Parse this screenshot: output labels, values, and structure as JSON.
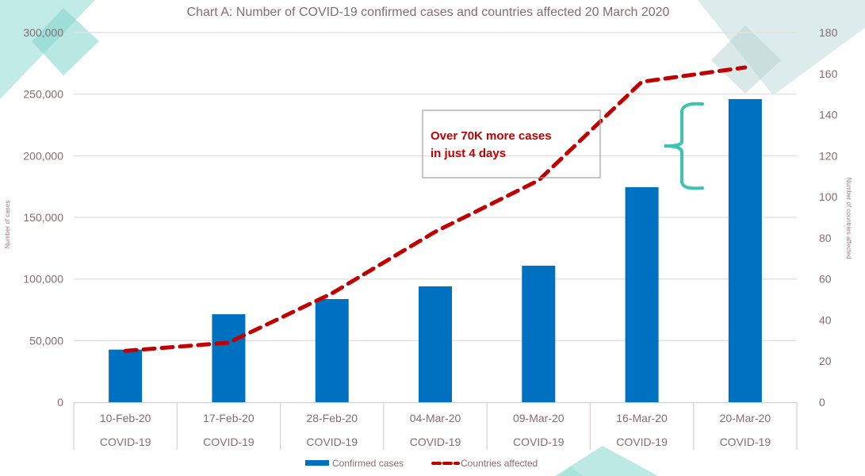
{
  "chart_data": {
    "type": "bar",
    "title": "Chart A: Number of COVID-19 confirmed cases and countries affected 20 March 2020",
    "categories": [
      "10-Feb-20",
      "17-Feb-20",
      "28-Feb-20",
      "04-Mar-20",
      "09-Mar-20",
      "16-Mar-20",
      "20-Mar-20"
    ],
    "category_group_labels": [
      "COVID-19",
      "COVID-19",
      "COVID-19",
      "COVID-19",
      "COVID-19",
      "COVID-19",
      "COVID-19"
    ],
    "series": [
      {
        "name": "Confirmed cases",
        "type": "bar",
        "axis": "left",
        "color": "#0070c0",
        "values": [
          42700,
          71400,
          83700,
          94000,
          110800,
          174500,
          246000
        ]
      },
      {
        "name": "Countries affected",
        "type": "line",
        "axis": "right",
        "style": "dashed",
        "color": "#c00000",
        "values": [
          25,
          29,
          53,
          83,
          108,
          156,
          163
        ]
      }
    ],
    "ylabel": "Number of cases",
    "y2label": "Number of countries affected",
    "ylim": [
      0,
      300000
    ],
    "y2lim": [
      0,
      180
    ],
    "yticks": [
      "0",
      "50,000",
      "100,000",
      "150,000",
      "200,000",
      "250,000",
      "300,000"
    ],
    "y2ticks": [
      "0",
      "20",
      "40",
      "60",
      "80",
      "100",
      "120",
      "140",
      "160",
      "180"
    ],
    "grid": true,
    "legend_position": "bottom",
    "annotation": {
      "lines": [
        "Over 70K more cases",
        "in just 4 days"
      ],
      "color": "#c00000",
      "bracket_color": "#3cc4b0"
    }
  },
  "colors": {
    "text": "#8a6a70",
    "grid": "#eadfe0",
    "decor_teal": "#9fe0d8",
    "decor_gray": "#c5dedd"
  }
}
